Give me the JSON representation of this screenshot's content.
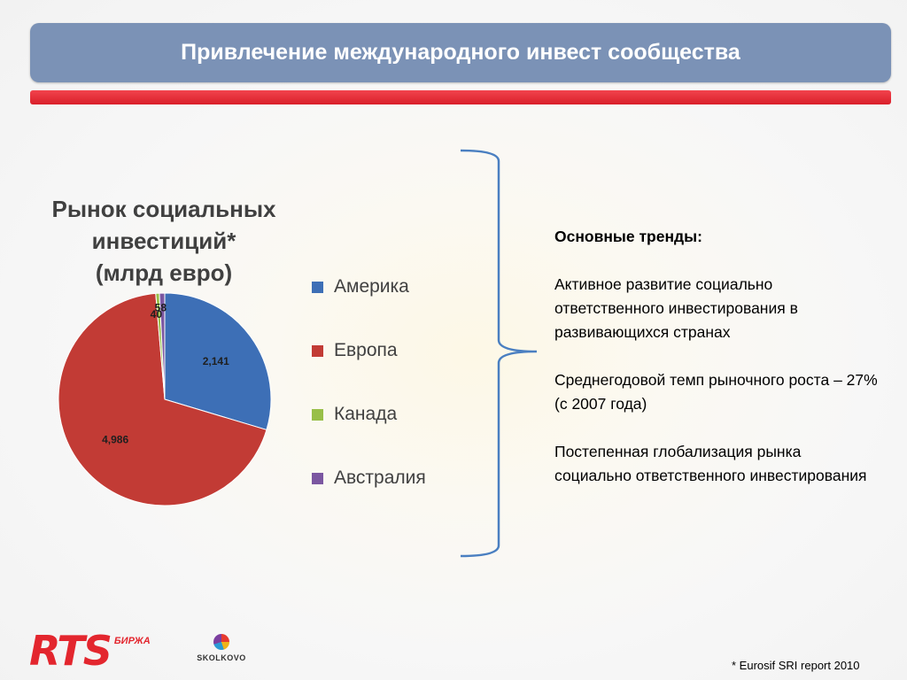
{
  "header": {
    "title": "Привлечение международного инвест сообщества"
  },
  "chart_data": {
    "type": "pie",
    "title": "Рынок социальных инвестиций* (млрд евро)",
    "title_lines": [
      "Рынок социальных",
      "инвестиций*",
      "(млрд евро)"
    ],
    "categories": [
      "Америка",
      "Европа",
      "Канада",
      "Австралия"
    ],
    "values": [
      2141,
      4986,
      40,
      58
    ],
    "data_labels": [
      "2,141",
      "4,986",
      "40",
      "58"
    ],
    "colors": [
      "#3d6fb6",
      "#c23b35",
      "#98bf48",
      "#7b57a1"
    ],
    "legend_position": "right"
  },
  "trends": {
    "heading": "Основные тренды:",
    "items": [
      "Активное развитие социально ответственного инвестирования в развивающихся странах",
      "Среднегодовой темп рыночного роста – 27% (с 2007 года)",
      "Постепенная глобализация рынка социально ответственного инвестирования"
    ]
  },
  "footer": {
    "footnote": "* Eurosif SRI report 2010",
    "rts_logo": "RTS",
    "rts_sub": "БИРЖА",
    "skolkovo_logo": "SKOLKOVO"
  },
  "colors": {
    "title_bar": "#7b92b6",
    "accent_red": "#e3262e",
    "bracket": "#4a7fc1"
  }
}
